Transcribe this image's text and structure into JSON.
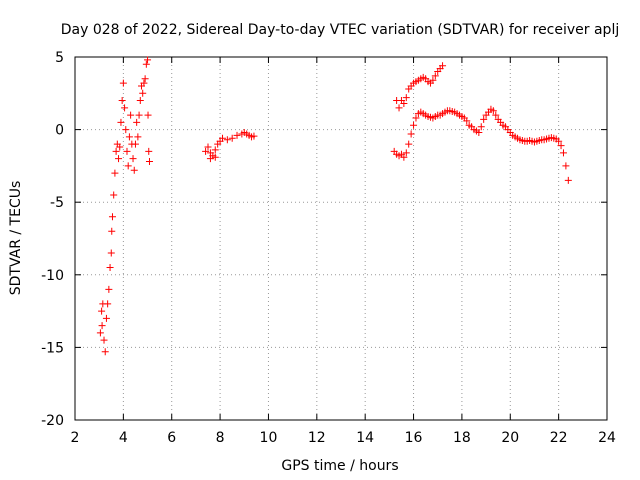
{
  "chart_data": {
    "type": "scatter",
    "title": "Day 028 of 2022, Sidereal Day-to-day VTEC variation (SDTVAR) for receiver aplj",
    "xlabel": "GPS time / hours",
    "ylabel": "SDTVAR / TECUs",
    "xlim": [
      2,
      24
    ],
    "ylim": [
      -20,
      5
    ],
    "xticks": [
      "2",
      "4",
      "6",
      "8",
      "10",
      "12",
      "14",
      "16",
      "18",
      "20",
      "22",
      "24"
    ],
    "yticks": [
      "5",
      "0",
      "-5",
      "-10",
      "-15",
      "-20"
    ],
    "grid": true,
    "marker": "+",
    "color": "#ff0000",
    "series": [
      {
        "name": "segment-1",
        "points": [
          [
            3.05,
            -14.0
          ],
          [
            3.1,
            -12.5
          ],
          [
            3.12,
            -13.5
          ],
          [
            3.15,
            -12.0
          ],
          [
            3.2,
            -14.5
          ],
          [
            3.25,
            -15.3
          ],
          [
            3.3,
            -13.0
          ],
          [
            3.35,
            -12.0
          ],
          [
            3.4,
            -11.0
          ],
          [
            3.45,
            -9.5
          ],
          [
            3.5,
            -8.5
          ],
          [
            3.52,
            -7.0
          ],
          [
            3.55,
            -6.0
          ],
          [
            3.6,
            -4.5
          ],
          [
            3.65,
            -3.0
          ],
          [
            3.7,
            -1.5
          ],
          [
            3.75,
            -1.0
          ],
          [
            3.8,
            -2.0
          ],
          [
            3.85,
            -1.2
          ],
          [
            3.9,
            0.5
          ],
          [
            3.95,
            2.0
          ],
          [
            4.0,
            3.2
          ],
          [
            4.05,
            1.5
          ],
          [
            4.1,
            0.0
          ],
          [
            4.15,
            -1.5
          ],
          [
            4.2,
            -2.5
          ],
          [
            4.25,
            -0.5
          ],
          [
            4.3,
            1.0
          ],
          [
            4.35,
            -1.0
          ],
          [
            4.4,
            -2.0
          ],
          [
            4.45,
            -2.8
          ],
          [
            4.5,
            -1.0
          ],
          [
            4.55,
            0.5
          ],
          [
            4.6,
            -0.5
          ],
          [
            4.65,
            1.0
          ],
          [
            4.7,
            2.0
          ],
          [
            4.75,
            3.0
          ],
          [
            4.8,
            2.5
          ],
          [
            4.85,
            3.2
          ],
          [
            4.9,
            3.5
          ],
          [
            4.95,
            4.5
          ],
          [
            5.0,
            4.8
          ],
          [
            5.02,
            1.0
          ],
          [
            5.05,
            -1.5
          ],
          [
            5.08,
            -2.2
          ]
        ]
      },
      {
        "name": "segment-2",
        "points": [
          [
            7.4,
            -1.5
          ],
          [
            7.5,
            -1.2
          ],
          [
            7.6,
            -1.6
          ],
          [
            7.7,
            -1.8
          ],
          [
            7.8,
            -1.4
          ],
          [
            7.9,
            -1.0
          ],
          [
            8.0,
            -0.8
          ],
          [
            8.1,
            -0.6
          ],
          [
            8.3,
            -0.7
          ],
          [
            8.5,
            -0.6
          ],
          [
            8.7,
            -0.4
          ],
          [
            8.9,
            -0.3
          ],
          [
            9.0,
            -0.2
          ],
          [
            9.1,
            -0.3
          ],
          [
            9.2,
            -0.4
          ],
          [
            9.3,
            -0.5
          ],
          [
            9.4,
            -0.45
          ],
          [
            7.6,
            -2.0
          ],
          [
            7.8,
            -1.9
          ]
        ]
      },
      {
        "name": "segment-3",
        "points": [
          [
            15.2,
            -1.5
          ],
          [
            15.3,
            -1.7
          ],
          [
            15.4,
            -1.8
          ],
          [
            15.5,
            -1.7
          ],
          [
            15.6,
            -1.9
          ],
          [
            15.7,
            -1.6
          ],
          [
            15.8,
            -1.0
          ],
          [
            15.9,
            -0.3
          ],
          [
            16.0,
            0.3
          ],
          [
            16.1,
            0.8
          ],
          [
            16.2,
            1.1
          ],
          [
            16.3,
            1.2
          ],
          [
            16.4,
            1.1
          ],
          [
            16.5,
            1.0
          ],
          [
            16.6,
            0.9
          ],
          [
            16.7,
            0.85
          ],
          [
            16.8,
            0.8
          ],
          [
            16.9,
            0.9
          ],
          [
            17.0,
            1.0
          ],
          [
            17.1,
            1.0
          ],
          [
            17.2,
            1.1
          ],
          [
            17.3,
            1.2
          ],
          [
            17.4,
            1.3
          ],
          [
            17.5,
            1.3
          ],
          [
            17.6,
            1.25
          ],
          [
            17.7,
            1.2
          ],
          [
            17.8,
            1.1
          ],
          [
            17.9,
            1.0
          ],
          [
            18.0,
            0.9
          ],
          [
            18.1,
            0.8
          ],
          [
            18.2,
            0.6
          ],
          [
            18.3,
            0.3
          ],
          [
            18.4,
            0.2
          ],
          [
            18.5,
            0.0
          ],
          [
            18.6,
            -0.1
          ],
          [
            18.7,
            -0.2
          ],
          [
            18.8,
            0.2
          ],
          [
            18.9,
            0.7
          ],
          [
            19.0,
            1.0
          ],
          [
            19.1,
            1.2
          ],
          [
            19.2,
            1.4
          ],
          [
            19.3,
            1.3
          ],
          [
            19.4,
            1.0
          ],
          [
            19.5,
            0.7
          ],
          [
            19.6,
            0.5
          ],
          [
            19.7,
            0.3
          ],
          [
            19.8,
            0.2
          ],
          [
            19.9,
            0.0
          ],
          [
            20.0,
            -0.2
          ],
          [
            20.1,
            -0.4
          ],
          [
            20.2,
            -0.5
          ],
          [
            20.3,
            -0.6
          ],
          [
            20.4,
            -0.7
          ],
          [
            20.5,
            -0.75
          ],
          [
            20.6,
            -0.8
          ],
          [
            20.7,
            -0.8
          ],
          [
            20.8,
            -0.75
          ],
          [
            20.9,
            -0.8
          ],
          [
            21.0,
            -0.85
          ],
          [
            21.1,
            -0.8
          ],
          [
            21.2,
            -0.75
          ],
          [
            21.3,
            -0.7
          ],
          [
            21.4,
            -0.7
          ],
          [
            21.5,
            -0.65
          ],
          [
            21.6,
            -0.6
          ],
          [
            21.7,
            -0.55
          ],
          [
            21.8,
            -0.6
          ],
          [
            21.9,
            -0.65
          ],
          [
            22.0,
            -0.8
          ],
          [
            22.1,
            -1.1
          ],
          [
            22.2,
            -1.6
          ],
          [
            22.3,
            -2.5
          ],
          [
            22.4,
            -3.5
          ]
        ]
      },
      {
        "name": "segment-4",
        "points": [
          [
            15.3,
            2.0
          ],
          [
            15.4,
            1.5
          ],
          [
            15.5,
            2.0
          ],
          [
            15.6,
            1.8
          ],
          [
            15.7,
            2.2
          ],
          [
            15.8,
            2.8
          ],
          [
            15.9,
            3.0
          ],
          [
            16.0,
            3.2
          ],
          [
            16.1,
            3.3
          ],
          [
            16.2,
            3.4
          ],
          [
            16.3,
            3.5
          ],
          [
            16.4,
            3.6
          ],
          [
            16.5,
            3.5
          ],
          [
            16.6,
            3.3
          ],
          [
            16.7,
            3.2
          ],
          [
            16.8,
            3.4
          ],
          [
            16.9,
            3.7
          ],
          [
            17.0,
            4.0
          ],
          [
            17.1,
            4.2
          ],
          [
            17.2,
            4.4
          ]
        ]
      }
    ]
  }
}
